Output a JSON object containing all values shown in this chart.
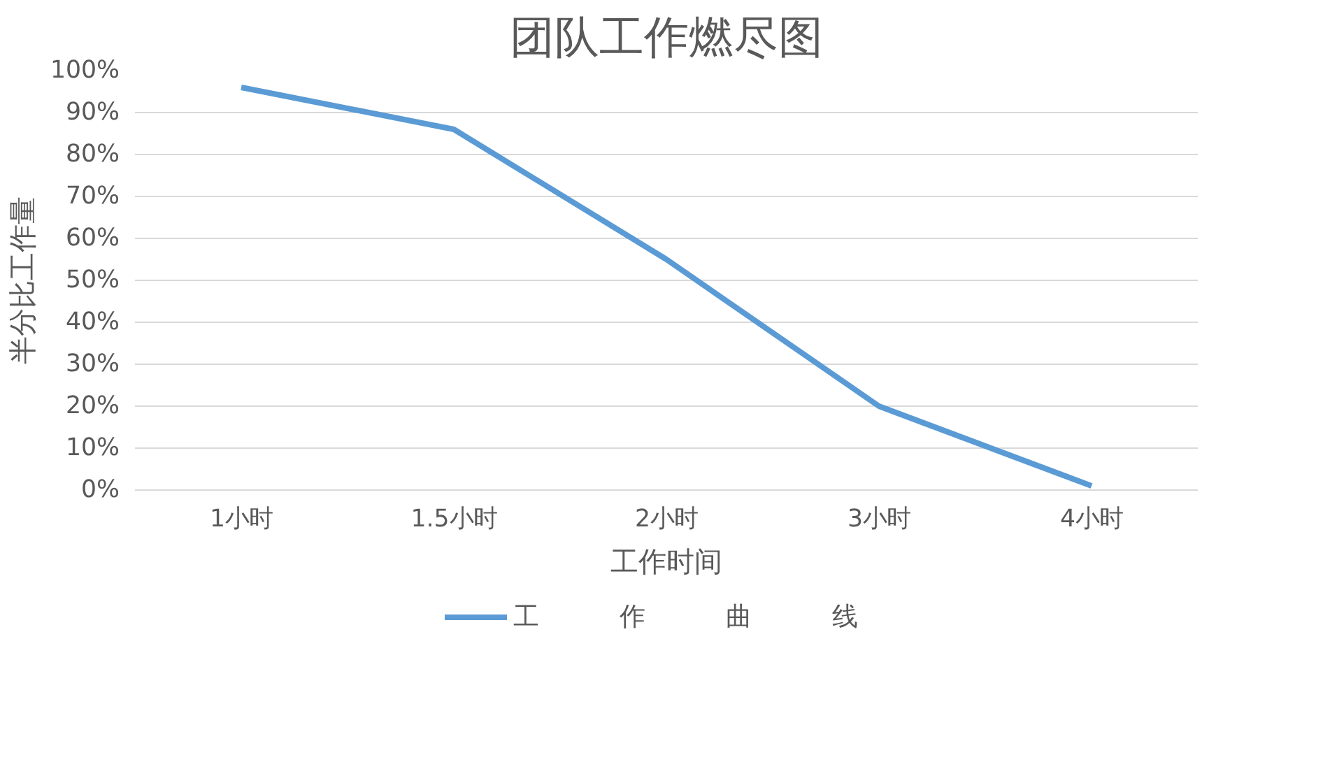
{
  "chart_data": {
    "type": "line",
    "title": "团队工作燃尽图",
    "xlabel": "工作时间",
    "ylabel": "半分比工作量",
    "categories": [
      "1小时",
      "1.5小时",
      "2小时",
      "3小时",
      "4小时"
    ],
    "series": [
      {
        "name": "工　　　作　　　曲　　　线",
        "color": "#5b9bd5",
        "values": [
          96,
          86,
          55,
          20,
          1
        ]
      }
    ],
    "ylim": [
      0,
      100
    ],
    "yticks": [
      {
        "value": 0,
        "label": "0%"
      },
      {
        "value": 10,
        "label": "10%"
      },
      {
        "value": 20,
        "label": "20%"
      },
      {
        "value": 30,
        "label": "30%"
      },
      {
        "value": 40,
        "label": "40%"
      },
      {
        "value": 50,
        "label": "50%"
      },
      {
        "value": 60,
        "label": "60%"
      },
      {
        "value": 70,
        "label": "70%"
      },
      {
        "value": 80,
        "label": "80%"
      },
      {
        "value": 90,
        "label": "90%"
      },
      {
        "value": 100,
        "label": "100%"
      }
    ],
    "grid": "y",
    "legend": "bottom",
    "marker": "none",
    "line_style": "solid"
  }
}
